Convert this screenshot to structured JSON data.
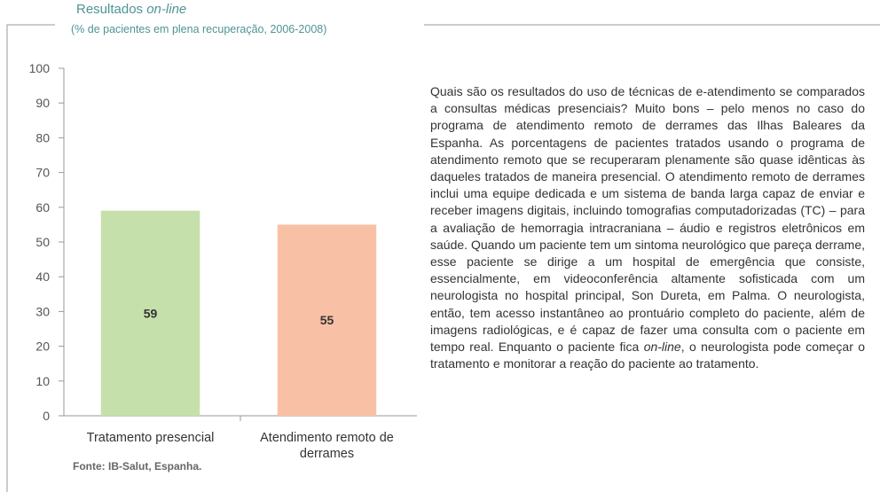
{
  "chart_data": {
    "type": "bar",
    "title": [
      "Resultados",
      "on-line"
    ],
    "subtitle": "(% de pacientes em plena recuperação, 2006-2008)",
    "categories": [
      "Tratamento presencial",
      "Atendimento remoto de derrames"
    ],
    "values": [
      59,
      55
    ],
    "colors": [
      "#c6e0ab",
      "#f8c1a6"
    ],
    "ylim": [
      0,
      100
    ],
    "yticks": [
      0,
      10,
      20,
      30,
      40,
      50,
      60,
      70,
      80,
      90,
      100
    ],
    "source": "Fonte: IB-Salut, Espanha."
  },
  "text": [
    "Quais são os resultados do uso de técnicas de e-atendimento se comparados a consultas médicas presenciais? Muito bons – pelo menos no caso do programa de atendimento remoto de derrames das Ilhas Baleares da Espanha. As porcentagens de pacientes tratados usando o programa de atendimento remoto que se recuperaram plenamente são quase idênticas às daqueles tratados de maneira presencial. O atendimento remoto de derrames inclui uma equipe dedicada e um sistema de banda larga capaz de enviar e receber imagens digitais, incluindo tomografias computadorizadas (TC) – para a avaliação de hemorragia intracraniana – áudio e registros eletrônicos em saúde. Quando um paciente tem um sintoma neurológico que pareça derrame, esse paciente se dirige a um hospital de emergência que consiste, essencialmente, em videoconferência altamente sofisticada com um neurologista no hospital principal, Son Dureta, em Palma. O neurologista, então, tem acesso instantâneo ao prontuário completo do paciente, além de imagens radiológicas, e é capaz de fazer uma consulta com o paciente em tempo real. Enquanto o paciente fica",
    "on-line",
    ", o neurologista pode começar o tratamento e monitorar a reação do paciente ao tratamento."
  ]
}
